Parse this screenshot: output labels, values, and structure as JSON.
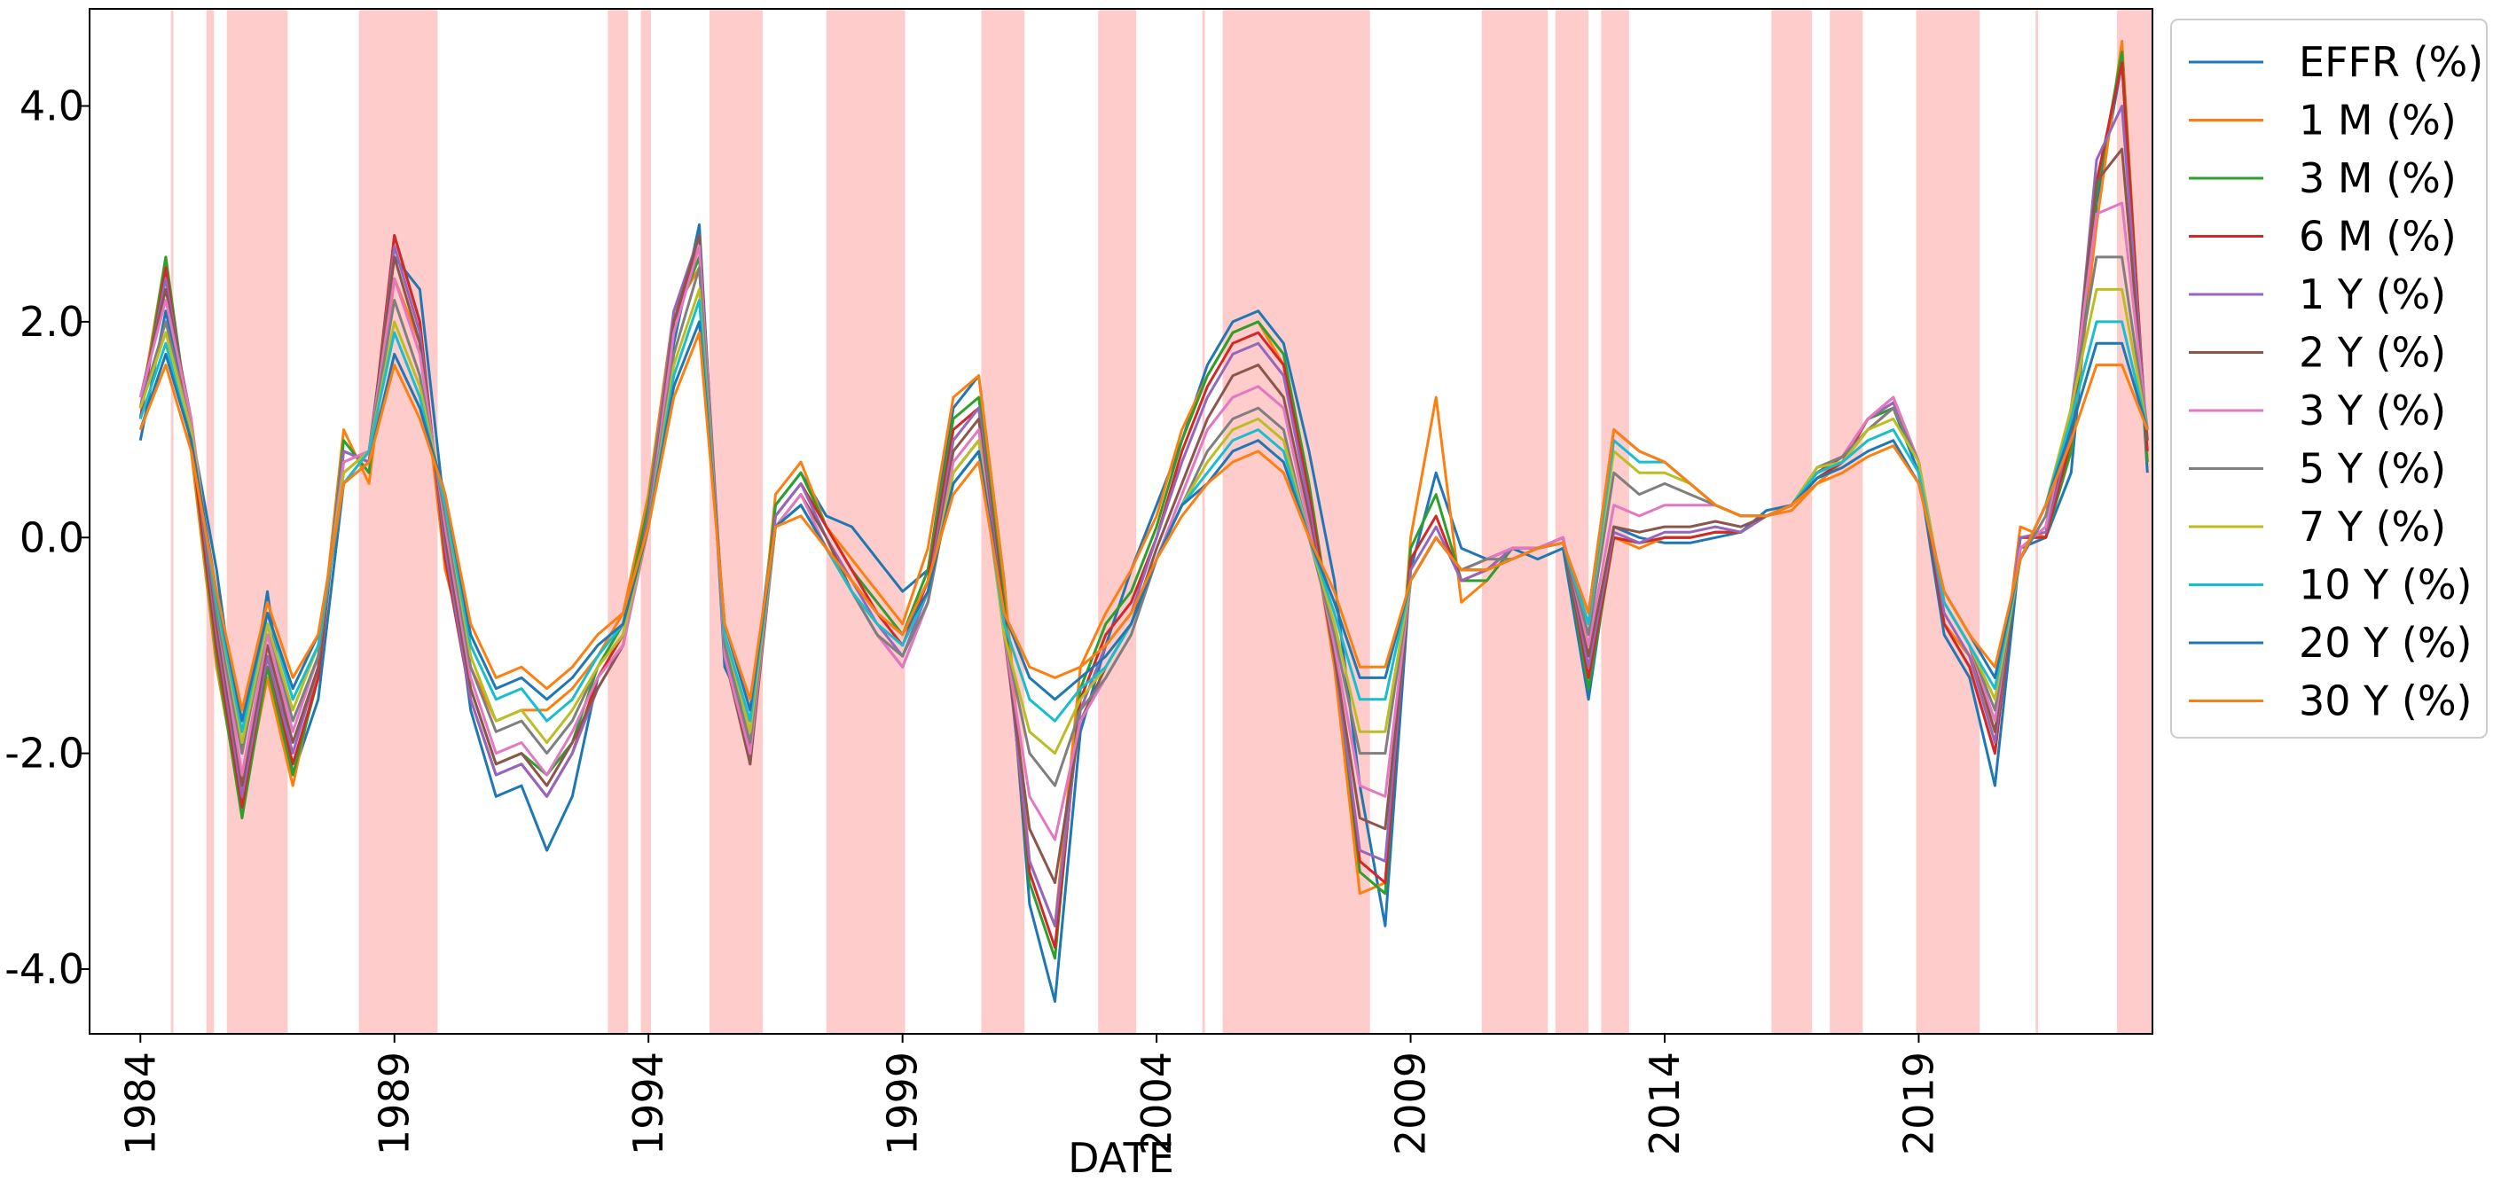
{
  "chart_data": {
    "type": "line",
    "title": "",
    "xlabel": "DATE",
    "ylabel": "",
    "xlim": [
      1983.0,
      2023.6
    ],
    "ylim": [
      -4.6,
      4.9
    ],
    "x_ticks": [
      1984,
      1989,
      1994,
      1999,
      2004,
      2009,
      2014,
      2019
    ],
    "x_tick_labels": [
      "1984",
      "1989",
      "1994",
      "1999",
      "2004",
      "2009",
      "2014",
      "2019"
    ],
    "y_ticks": [
      -4.0,
      -2.0,
      0.0,
      2.0,
      4.0
    ],
    "y_tick_labels": [
      "-4.0",
      "-2.0",
      "0.0",
      "2.0",
      "4.0"
    ],
    "grid": false,
    "legend_position": "outside-right-top",
    "shaded_color": "#ffcccc",
    "shaded_periods": [
      [
        1984.6,
        1984.65
      ],
      [
        1985.3,
        1985.45
      ],
      [
        1985.7,
        1986.9
      ],
      [
        1988.3,
        1989.85
      ],
      [
        1993.2,
        1993.6
      ],
      [
        1993.85,
        1994.05
      ],
      [
        1995.2,
        1996.25
      ],
      [
        1997.5,
        1999.05
      ],
      [
        2000.55,
        2001.4
      ],
      [
        2002.85,
        2003.6
      ],
      [
        2004.9,
        2004.95
      ],
      [
        2005.3,
        2008.2
      ],
      [
        2010.4,
        2011.7
      ],
      [
        2011.85,
        2012.5
      ],
      [
        2012.75,
        2013.3
      ],
      [
        2016.1,
        2016.9
      ],
      [
        2017.25,
        2017.9
      ],
      [
        2018.95,
        2020.2
      ],
      [
        2021.3,
        2021.35
      ],
      [
        2022.9,
        2023.6
      ]
    ],
    "x": [
      1984.0,
      1984.5,
      1985.0,
      1985.5,
      1986.0,
      1986.5,
      1987.0,
      1987.5,
      1988.0,
      1988.5,
      1989.0,
      1989.5,
      1990.0,
      1990.5,
      1991.0,
      1991.5,
      1992.0,
      1992.5,
      1993.0,
      1993.5,
      1994.0,
      1994.5,
      1995.0,
      1995.5,
      1996.0,
      1996.5,
      1997.0,
      1997.5,
      1998.0,
      1998.5,
      1999.0,
      1999.5,
      2000.0,
      2000.5,
      2001.0,
      2001.5,
      2002.0,
      2002.5,
      2003.0,
      2003.5,
      2004.0,
      2004.5,
      2005.0,
      2005.5,
      2006.0,
      2006.5,
      2007.0,
      2007.5,
      2008.0,
      2008.5,
      2009.0,
      2009.5,
      2010.0,
      2010.5,
      2011.0,
      2011.5,
      2012.0,
      2012.5,
      2013.0,
      2013.5,
      2014.0,
      2014.5,
      2015.0,
      2015.5,
      2016.0,
      2016.5,
      2017.0,
      2017.5,
      2018.0,
      2018.5,
      2019.0,
      2019.5,
      2020.0,
      2020.5,
      2021.0,
      2021.5,
      2022.0,
      2022.5,
      2023.0,
      2023.5
    ],
    "series": [
      {
        "name": "EFFR (%)",
        "color": "#1f77b4",
        "values": [
          0.9,
          2.1,
          1.0,
          -0.3,
          -2.0,
          -0.5,
          -2.2,
          -1.5,
          0.5,
          0.8,
          2.6,
          2.3,
          0.2,
          -1.6,
          -2.4,
          -2.3,
          -2.9,
          -2.4,
          -1.3,
          -1.0,
          0.3,
          1.8,
          2.9,
          -1.2,
          -1.7,
          0.3,
          0.6,
          0.2,
          0.1,
          -0.2,
          -0.5,
          -0.3,
          1.2,
          1.5,
          -0.4,
          -3.4,
          -4.3,
          -1.8,
          -1.0,
          -0.3,
          0.3,
          0.9,
          1.6,
          2.0,
          2.1,
          1.8,
          0.8,
          -0.4,
          -2.3,
          -3.6,
          -0.3,
          0.6,
          -0.1,
          -0.2,
          -0.1,
          -0.2,
          -0.1,
          -1.5,
          0.1,
          0.0,
          -0.05,
          -0.05,
          0.0,
          0.05,
          0.25,
          0.3,
          0.6,
          0.7,
          1.1,
          1.2,
          0.6,
          -0.9,
          -1.3,
          -2.3,
          -0.1,
          0.0,
          0.6,
          3.1,
          4.4,
          0.6
        ]
      },
      {
        "name": "1 M (%)",
        "color": "#ff7f0e",
        "values": [
          1.2,
          2.6,
          0.8,
          -1.2,
          -2.5,
          -1.3,
          -2.3,
          -1.2,
          1.0,
          0.5,
          2.4,
          1.8,
          -0.3,
          -1.2,
          -1.7,
          -1.6,
          -1.6,
          -1.4,
          -1.1,
          -0.7,
          0.4,
          2.1,
          2.5,
          -0.9,
          -2.0,
          0.4,
          0.7,
          0.1,
          -0.2,
          -0.5,
          -0.8,
          -0.1,
          1.3,
          1.5,
          -0.4,
          -3.0,
          -3.6,
          -1.2,
          -0.7,
          -0.3,
          0.2,
          1.0,
          1.5,
          1.9,
          2.0,
          1.6,
          0.3,
          -1.2,
          -3.3,
          -3.2,
          0.0,
          1.3,
          -0.6,
          -0.4,
          -0.1,
          -0.1,
          0.0,
          -1.3,
          0.0,
          -0.1,
          0.0,
          0.0,
          0.05,
          0.05,
          0.2,
          0.25,
          0.5,
          0.7,
          1.0,
          1.2,
          0.7,
          -0.8,
          -1.1,
          -1.8,
          0.1,
          0.0,
          0.8,
          2.9,
          4.6,
          0.7
        ]
      },
      {
        "name": "3 M (%)",
        "color": "#2ca02c",
        "values": [
          1.1,
          2.6,
          0.9,
          -1.1,
          -2.6,
          -1.2,
          -2.2,
          -1.3,
          0.9,
          0.6,
          2.8,
          2.0,
          -0.2,
          -1.4,
          -2.1,
          -2.0,
          -2.2,
          -1.9,
          -1.2,
          -0.8,
          0.3,
          2.0,
          2.6,
          -1.0,
          -2.0,
          0.3,
          0.6,
          0.1,
          -0.3,
          -0.6,
          -0.9,
          -0.3,
          1.1,
          1.3,
          -0.6,
          -3.2,
          -3.9,
          -1.4,
          -0.8,
          -0.5,
          0.1,
          0.9,
          1.5,
          1.9,
          2.0,
          1.7,
          0.5,
          -1.0,
          -3.1,
          -3.3,
          -0.1,
          0.4,
          -0.4,
          -0.4,
          -0.1,
          -0.1,
          0.0,
          -1.4,
          0.0,
          -0.05,
          0.0,
          0.0,
          0.05,
          0.05,
          0.2,
          0.3,
          0.55,
          0.7,
          1.1,
          1.2,
          0.7,
          -0.8,
          -1.2,
          -2.0,
          0.0,
          0.0,
          0.8,
          3.2,
          4.5,
          0.7
        ]
      },
      {
        "name": "6 M (%)",
        "color": "#d62728",
        "values": [
          1.1,
          2.5,
          0.9,
          -1.0,
          -2.5,
          -1.1,
          -2.1,
          -1.3,
          0.8,
          0.7,
          2.8,
          2.0,
          -0.2,
          -1.5,
          -2.2,
          -2.1,
          -2.4,
          -2.0,
          -1.3,
          -0.9,
          0.2,
          2.0,
          2.7,
          -1.0,
          -2.0,
          0.2,
          0.5,
          0.1,
          -0.3,
          -0.7,
          -1.0,
          -0.4,
          1.0,
          1.2,
          -0.7,
          -3.1,
          -3.8,
          -1.5,
          -0.9,
          -0.6,
          0.0,
          0.8,
          1.4,
          1.8,
          1.9,
          1.6,
          0.4,
          -1.0,
          -3.0,
          -3.2,
          -0.2,
          0.2,
          -0.4,
          -0.3,
          -0.1,
          -0.1,
          0.0,
          -1.3,
          0.0,
          -0.05,
          0.0,
          0.0,
          0.05,
          0.05,
          0.2,
          0.3,
          0.55,
          0.7,
          1.1,
          1.25,
          0.7,
          -0.8,
          -1.2,
          -2.0,
          0.0,
          0.0,
          0.9,
          3.3,
          4.4,
          0.8
        ]
      },
      {
        "name": "1 Y (%)",
        "color": "#9467bd",
        "values": [
          1.2,
          2.4,
          1.0,
          -0.9,
          -2.4,
          -1.1,
          -2.0,
          -1.2,
          0.8,
          0.7,
          2.7,
          1.9,
          -0.1,
          -1.5,
          -2.2,
          -2.1,
          -2.4,
          -2.0,
          -1.4,
          -1.0,
          0.2,
          2.1,
          2.8,
          -1.0,
          -2.1,
          0.2,
          0.5,
          0.0,
          -0.4,
          -0.8,
          -1.1,
          -0.5,
          0.9,
          1.2,
          -0.8,
          -3.0,
          -3.6,
          -1.6,
          -1.0,
          -0.7,
          0.0,
          0.7,
          1.3,
          1.7,
          1.8,
          1.5,
          0.3,
          -1.1,
          -2.9,
          -3.0,
          -0.3,
          0.1,
          -0.4,
          -0.3,
          -0.1,
          -0.1,
          0.0,
          -1.2,
          0.05,
          -0.05,
          0.05,
          0.05,
          0.1,
          0.05,
          0.2,
          0.3,
          0.6,
          0.75,
          1.1,
          1.25,
          0.7,
          -0.7,
          -1.1,
          -1.9,
          0.0,
          0.05,
          1.0,
          3.5,
          4.0,
          0.9
        ]
      },
      {
        "name": "2 Y (%)",
        "color": "#8c564b",
        "values": [
          1.3,
          2.3,
          1.1,
          -0.8,
          -2.3,
          -1.0,
          -1.9,
          -1.2,
          0.7,
          0.8,
          2.6,
          1.8,
          0.0,
          -1.4,
          -2.1,
          -2.0,
          -2.3,
          -1.9,
          -1.4,
          -1.0,
          0.1,
          2.0,
          2.8,
          -1.1,
          -2.1,
          0.1,
          0.4,
          0.0,
          -0.5,
          -0.9,
          -1.2,
          -0.6,
          0.8,
          1.1,
          -0.9,
          -2.7,
          -3.2,
          -1.7,
          -1.2,
          -0.8,
          -0.1,
          0.5,
          1.1,
          1.5,
          1.6,
          1.3,
          0.2,
          -1.1,
          -2.6,
          -2.7,
          -0.4,
          0.0,
          -0.3,
          -0.2,
          -0.1,
          -0.1,
          0.0,
          -1.1,
          0.1,
          0.05,
          0.1,
          0.1,
          0.15,
          0.1,
          0.2,
          0.3,
          0.6,
          0.75,
          1.1,
          1.3,
          0.7,
          -0.6,
          -1.0,
          -1.8,
          -0.1,
          0.1,
          1.1,
          3.3,
          3.6,
          0.9
        ]
      },
      {
        "name": "3 Y (%)",
        "color": "#e377c2",
        "values": [
          1.3,
          2.2,
          1.1,
          -0.7,
          -2.2,
          -0.9,
          -1.8,
          -1.1,
          0.7,
          0.8,
          2.4,
          1.7,
          0.1,
          -1.3,
          -2.0,
          -1.9,
          -2.2,
          -1.8,
          -1.3,
          -1.0,
          0.1,
          1.9,
          2.7,
          -1.1,
          -2.0,
          0.1,
          0.4,
          -0.1,
          -0.5,
          -0.9,
          -1.2,
          -0.6,
          0.7,
          1.0,
          -0.9,
          -2.4,
          -2.8,
          -1.7,
          -1.3,
          -0.9,
          -0.2,
          0.4,
          1.0,
          1.3,
          1.4,
          1.2,
          0.1,
          -1.0,
          -2.3,
          -2.4,
          -0.4,
          0.0,
          -0.3,
          -0.2,
          -0.1,
          -0.1,
          0.0,
          -1.0,
          0.3,
          0.2,
          0.3,
          0.3,
          0.3,
          0.2,
          0.2,
          0.3,
          0.65,
          0.75,
          1.1,
          1.3,
          0.7,
          -0.6,
          -1.0,
          -1.7,
          -0.1,
          0.1,
          1.2,
          3.0,
          3.1,
          1.0
        ]
      },
      {
        "name": "5 Y (%)",
        "color": "#7f7f7f",
        "values": [
          1.2,
          2.0,
          1.0,
          -0.7,
          -2.0,
          -0.8,
          -1.7,
          -1.1,
          0.6,
          0.8,
          2.2,
          1.5,
          0.2,
          -1.2,
          -1.8,
          -1.7,
          -2.0,
          -1.7,
          -1.2,
          -0.9,
          0.1,
          1.7,
          2.5,
          -1.0,
          -1.9,
          0.1,
          0.3,
          -0.1,
          -0.5,
          -0.9,
          -1.1,
          -0.6,
          0.6,
          0.9,
          -0.9,
          -2.0,
          -2.3,
          -1.6,
          -1.3,
          -0.9,
          -0.2,
          0.3,
          0.8,
          1.1,
          1.2,
          1.0,
          0.0,
          -0.9,
          -2.0,
          -2.0,
          -0.4,
          0.0,
          -0.3,
          -0.2,
          -0.2,
          -0.1,
          -0.05,
          -0.9,
          0.6,
          0.4,
          0.5,
          0.4,
          0.3,
          0.2,
          0.2,
          0.3,
          0.65,
          0.75,
          1.0,
          1.2,
          0.7,
          -0.6,
          -1.0,
          -1.6,
          -0.2,
          0.2,
          1.2,
          2.6,
          2.6,
          1.0
        ]
      },
      {
        "name": "7 Y (%)",
        "color": "#bcbd22",
        "values": [
          1.2,
          1.9,
          1.0,
          -0.6,
          -1.9,
          -0.8,
          -1.6,
          -1.0,
          0.6,
          0.8,
          2.0,
          1.4,
          0.3,
          -1.1,
          -1.7,
          -1.6,
          -1.9,
          -1.6,
          -1.2,
          -0.9,
          0.1,
          1.6,
          2.3,
          -0.9,
          -1.8,
          0.1,
          0.3,
          -0.1,
          -0.5,
          -0.8,
          -1.0,
          -0.5,
          0.6,
          0.9,
          -0.9,
          -1.8,
          -2.0,
          -1.5,
          -1.2,
          -0.8,
          -0.2,
          0.3,
          0.7,
          1.0,
          1.1,
          0.9,
          0.0,
          -0.8,
          -1.8,
          -1.8,
          -0.4,
          0.0,
          -0.3,
          -0.3,
          -0.2,
          -0.1,
          -0.05,
          -0.8,
          0.8,
          0.6,
          0.6,
          0.5,
          0.3,
          0.2,
          0.2,
          0.3,
          0.65,
          0.7,
          1.0,
          1.1,
          0.7,
          -0.6,
          -1.0,
          -1.5,
          -0.2,
          0.3,
          1.2,
          2.3,
          2.3,
          1.0
        ]
      },
      {
        "name": "10 Y (%)",
        "color": "#17becf",
        "values": [
          1.1,
          1.8,
          0.9,
          -0.6,
          -1.8,
          -0.7,
          -1.5,
          -1.0,
          0.5,
          0.8,
          1.9,
          1.3,
          0.3,
          -1.0,
          -1.5,
          -1.4,
          -1.7,
          -1.5,
          -1.1,
          -0.8,
          0.1,
          1.5,
          2.2,
          -0.9,
          -1.7,
          0.1,
          0.3,
          -0.1,
          -0.5,
          -0.8,
          -1.0,
          -0.5,
          0.5,
          0.8,
          -0.8,
          -1.5,
          -1.7,
          -1.4,
          -1.2,
          -0.8,
          -0.2,
          0.3,
          0.6,
          0.9,
          1.0,
          0.8,
          0.0,
          -0.7,
          -1.5,
          -1.5,
          -0.4,
          0.0,
          -0.3,
          -0.3,
          -0.2,
          -0.1,
          -0.05,
          -0.8,
          0.9,
          0.7,
          0.7,
          0.5,
          0.3,
          0.2,
          0.2,
          0.3,
          0.6,
          0.7,
          0.9,
          1.0,
          0.6,
          -0.6,
          -1.0,
          -1.4,
          -0.2,
          0.3,
          1.1,
          2.0,
          2.0,
          1.0
        ]
      },
      {
        "name": "20 Y (%)",
        "color": "#1f77b4",
        "values": [
          1.0,
          1.7,
          0.9,
          -0.5,
          -1.7,
          -0.7,
          -1.4,
          -0.9,
          0.5,
          0.7,
          1.7,
          1.2,
          0.4,
          -0.9,
          -1.4,
          -1.3,
          -1.5,
          -1.3,
          -1.0,
          -0.8,
          0.1,
          1.4,
          2.0,
          -0.8,
          -1.6,
          0.1,
          0.3,
          -0.1,
          -0.4,
          -0.7,
          -0.9,
          -0.5,
          0.5,
          0.8,
          -0.7,
          -1.3,
          -1.5,
          -1.3,
          -1.1,
          -0.8,
          -0.2,
          0.3,
          0.5,
          0.8,
          0.9,
          0.7,
          0.0,
          -0.6,
          -1.3,
          -1.3,
          -0.4,
          0.0,
          -0.3,
          -0.3,
          -0.2,
          -0.1,
          -0.05,
          -0.7,
          1.0,
          0.8,
          0.7,
          0.5,
          0.3,
          0.2,
          0.2,
          0.3,
          0.55,
          0.65,
          0.8,
          0.9,
          0.5,
          -0.5,
          -0.9,
          -1.3,
          -0.2,
          0.3,
          1.0,
          1.8,
          1.8,
          1.0
        ]
      },
      {
        "name": "30 Y (%)",
        "color": "#ff7f0e",
        "values": [
          1.0,
          1.6,
          0.8,
          -0.5,
          -1.6,
          -0.6,
          -1.3,
          -0.9,
          0.5,
          0.7,
          1.6,
          1.1,
          0.4,
          -0.8,
          -1.3,
          -1.2,
          -1.4,
          -1.2,
          -0.9,
          -0.7,
          0.1,
          1.3,
          1.9,
          -0.8,
          -1.5,
          0.1,
          0.2,
          -0.1,
          -0.4,
          -0.7,
          -0.9,
          -0.4,
          0.4,
          0.7,
          -0.7,
          -1.2,
          -1.3,
          -1.2,
          -1.0,
          -0.7,
          -0.2,
          0.2,
          0.5,
          0.7,
          0.8,
          0.6,
          0.0,
          -0.5,
          -1.2,
          -1.2,
          -0.4,
          0.0,
          -0.3,
          -0.3,
          -0.2,
          -0.1,
          -0.05,
          -0.7,
          1.0,
          0.8,
          0.7,
          0.5,
          0.3,
          0.2,
          0.2,
          0.3,
          0.5,
          0.6,
          0.75,
          0.85,
          0.5,
          -0.5,
          -0.9,
          -1.2,
          -0.2,
          0.3,
          0.9,
          1.6,
          1.6,
          1.0
        ]
      }
    ]
  }
}
